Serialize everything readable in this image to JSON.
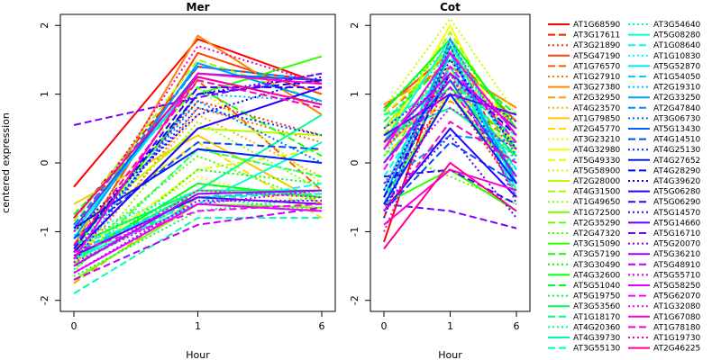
{
  "chart_data": [
    {
      "type": "line",
      "title": "Mer",
      "xlabel": "Hour",
      "ylabel": "centered expression",
      "x": [
        "0",
        "1",
        "6"
      ],
      "ylim": [
        -2,
        2
      ],
      "yticks": [
        -2,
        -1,
        0,
        1,
        2
      ],
      "series": [
        {
          "name": "AT1G68590",
          "values": [
            -0.35,
            1.8,
            1.15
          ]
        },
        {
          "name": "AT3G17611",
          "values": [
            -0.8,
            1.4,
            1.2
          ]
        },
        {
          "name": "AT3G21890",
          "values": [
            -1.1,
            0.9,
            0.4
          ]
        },
        {
          "name": "AT5G47190",
          "values": [
            -1.3,
            1.6,
            1.0
          ]
        },
        {
          "name": "AT1G76570",
          "values": [
            -0.9,
            1.2,
            -0.4
          ]
        },
        {
          "name": "AT1G27910",
          "values": [
            -1.5,
            0.8,
            0.3
          ]
        },
        {
          "name": "AT3G27380",
          "values": [
            -1.2,
            1.85,
            0.7
          ]
        },
        {
          "name": "AT2G32950",
          "values": [
            -1.75,
            -0.5,
            -0.6
          ]
        },
        {
          "name": "AT4G23570",
          "values": [
            -1.4,
            0.7,
            -0.2
          ]
        },
        {
          "name": "AT1G79850",
          "values": [
            -0.6,
            0.4,
            -0.6
          ]
        },
        {
          "name": "AT2G45770",
          "values": [
            -1.0,
            0.3,
            -0.8
          ]
        },
        {
          "name": "AT3G23210",
          "values": [
            -1.3,
            -0.2,
            -0.7
          ]
        },
        {
          "name": "AT4G32980",
          "values": [
            -1.2,
            -0.4,
            -0.5
          ]
        },
        {
          "name": "AT5G49330",
          "values": [
            -1.45,
            -0.1,
            0.2
          ]
        },
        {
          "name": "AT5G58900",
          "values": [
            -1.1,
            1.1,
            -0.3
          ]
        },
        {
          "name": "AT2G28000",
          "values": [
            -1.0,
            0.5,
            0.4
          ]
        },
        {
          "name": "AT4G31500",
          "values": [
            -0.85,
            1.5,
            0.9
          ]
        },
        {
          "name": "AT1G49650",
          "values": [
            -1.6,
            0.6,
            -0.4
          ]
        },
        {
          "name": "AT1G72500",
          "values": [
            -1.7,
            -0.6,
            -0.65
          ]
        },
        {
          "name": "AT2G35290",
          "values": [
            -1.5,
            0.2,
            -0.2
          ]
        },
        {
          "name": "AT2G47320",
          "values": [
            -1.35,
            0.1,
            -0.6
          ]
        },
        {
          "name": "AT3G15090",
          "values": [
            -1.25,
            1.0,
            1.55
          ]
        },
        {
          "name": "AT3G57190",
          "values": [
            -0.75,
            1.1,
            0.1
          ]
        },
        {
          "name": "AT3G30490",
          "values": [
            -1.55,
            -0.1,
            -0.3
          ]
        },
        {
          "name": "AT4G32600",
          "values": [
            -1.4,
            -0.3,
            -0.5
          ]
        },
        {
          "name": "AT5G51040",
          "values": [
            -1.3,
            -0.45,
            -0.4
          ]
        },
        {
          "name": "AT5G19750",
          "values": [
            -1.65,
            -0.7,
            -0.5
          ]
        },
        {
          "name": "AT3G53560",
          "values": [
            -1.2,
            -0.4,
            -0.4
          ]
        },
        {
          "name": "AT1G18170",
          "values": [
            -1.5,
            -0.5,
            -0.45
          ]
        },
        {
          "name": "AT4G20360",
          "values": [
            -1.1,
            -0.5,
            -0.7
          ]
        },
        {
          "name": "AT4G39730",
          "values": [
            -1.4,
            -0.4,
            0.7
          ]
        },
        {
          "name": "AT3G55130",
          "values": [
            -1.9,
            -0.8,
            -0.8
          ]
        },
        {
          "name": "AT3G54640",
          "values": [
            -1.55,
            0.2,
            -0.2
          ]
        },
        {
          "name": "AT5G08280",
          "values": [
            -1.4,
            -0.6,
            0.3
          ]
        },
        {
          "name": "AT1G08640",
          "values": [
            -1.2,
            -0.6,
            -0.3
          ]
        },
        {
          "name": "AT1G10830",
          "values": [
            -1.05,
            -0.4,
            -0.45
          ]
        },
        {
          "name": "AT5G52870",
          "values": [
            -1.0,
            1.25,
            0.85
          ]
        },
        {
          "name": "AT1G54050",
          "values": [
            -1.3,
            -0.5,
            -0.4
          ]
        },
        {
          "name": "AT2G19310",
          "values": [
            -1.4,
            1.0,
            0.9
          ]
        },
        {
          "name": "AT2G33250",
          "values": [
            -1.1,
            1.45,
            0.9
          ]
        },
        {
          "name": "AT2G47840",
          "values": [
            -0.9,
            1.4,
            1.2
          ]
        },
        {
          "name": "AT3G06730",
          "values": [
            -1.3,
            0.9,
            0.0
          ]
        },
        {
          "name": "AT5G13430",
          "values": [
            -0.95,
            1.3,
            1.2
          ]
        },
        {
          "name": "AT4G14510",
          "values": [
            -1.1,
            0.3,
            0.2
          ]
        },
        {
          "name": "AT4G25130",
          "values": [
            -1.2,
            0.8,
            0.4
          ]
        },
        {
          "name": "AT4G27652",
          "values": [
            -0.95,
            0.2,
            0.0
          ]
        },
        {
          "name": "AT4G28290",
          "values": [
            -1.2,
            1.0,
            1.2
          ]
        },
        {
          "name": "AT4G39620",
          "values": [
            -1.0,
            0.7,
            1.25
          ]
        },
        {
          "name": "AT5G06280",
          "values": [
            -1.3,
            0.5,
            1.1
          ]
        },
        {
          "name": "AT5G06290",
          "values": [
            -1.25,
            1.1,
            1.1
          ]
        },
        {
          "name": "AT5G14570",
          "values": [
            -1.45,
            1.0,
            1.3
          ]
        },
        {
          "name": "AT5G14660",
          "values": [
            -1.35,
            -0.5,
            -0.6
          ]
        },
        {
          "name": "AT5G16710",
          "values": [
            0.55,
            0.95,
            1.3
          ]
        },
        {
          "name": "AT5G20070",
          "values": [
            -1.6,
            -0.55,
            -0.55
          ]
        },
        {
          "name": "AT5G36210",
          "values": [
            -1.5,
            -0.45,
            -0.4
          ]
        },
        {
          "name": "AT5G48910",
          "values": [
            -1.7,
            -0.9,
            -0.65
          ]
        },
        {
          "name": "AT5G55710",
          "values": [
            -1.45,
            -0.6,
            -0.4
          ]
        },
        {
          "name": "AT5G58250",
          "values": [
            -1.6,
            -0.6,
            -0.7
          ]
        },
        {
          "name": "AT5G62070",
          "values": [
            -1.3,
            -0.7,
            -0.6
          ]
        },
        {
          "name": "AT1G32080",
          "values": [
            -1.5,
            -0.4,
            -0.5
          ]
        },
        {
          "name": "AT1G67080",
          "values": [
            -1.4,
            1.3,
            1.15
          ]
        },
        {
          "name": "AT1G78180",
          "values": [
            -1.2,
            1.2,
            0.8
          ]
        },
        {
          "name": "AT1G19730",
          "values": [
            -1.0,
            1.7,
            1.15
          ]
        },
        {
          "name": "AT2G46225",
          "values": [
            -0.8,
            1.25,
            0.85
          ]
        }
      ]
    },
    {
      "type": "line",
      "title": "Cot",
      "xlabel": "Hour",
      "ylabel": "",
      "x": [
        "0",
        "1",
        "6"
      ],
      "ylim": [
        -2,
        2
      ],
      "yticks": [
        -2,
        -1,
        0,
        1,
        2
      ],
      "series": [
        {
          "name": "AT1G68590",
          "values": [
            -1.15,
            1.7,
            -0.5
          ]
        },
        {
          "name": "AT3G17611",
          "values": [
            -0.8,
            1.8,
            -0.3
          ]
        },
        {
          "name": "AT3G21890",
          "values": [
            -0.3,
            1.0,
            -0.4
          ]
        },
        {
          "name": "AT5G47190",
          "values": [
            0.8,
            1.6,
            0.6
          ]
        },
        {
          "name": "AT1G76570",
          "values": [
            0.7,
            1.5,
            0.5
          ]
        },
        {
          "name": "AT1G27910",
          "values": [
            0.4,
            1.2,
            0.4
          ]
        },
        {
          "name": "AT3G27380",
          "values": [
            0.85,
            1.4,
            0.8
          ]
        },
        {
          "name": "AT2G32950",
          "values": [
            0.3,
            0.9,
            0.3
          ]
        },
        {
          "name": "AT4G23570",
          "values": [
            0.5,
            1.3,
            0.6
          ]
        },
        {
          "name": "AT1G79850",
          "values": [
            0.2,
            1.1,
            0.3
          ]
        },
        {
          "name": "AT2G45770",
          "values": [
            0.1,
            1.0,
            0.2
          ]
        },
        {
          "name": "AT3G23210",
          "values": [
            0.6,
            1.5,
            0.5
          ]
        },
        {
          "name": "AT4G32980",
          "values": [
            0.3,
            2.0,
            0.1
          ]
        },
        {
          "name": "AT5G49330",
          "values": [
            0.7,
            1.6,
            0.4
          ]
        },
        {
          "name": "AT5G58900",
          "values": [
            0.8,
            2.1,
            0.7
          ]
        },
        {
          "name": "AT2G28000",
          "values": [
            0.5,
            1.7,
            0.2
          ]
        },
        {
          "name": "AT4G31500",
          "values": [
            0.4,
            1.9,
            0.4
          ]
        },
        {
          "name": "AT1G49650",
          "values": [
            -0.3,
            1.3,
            0.0
          ]
        },
        {
          "name": "AT1G72500",
          "values": [
            -0.5,
            1.0,
            -0.2
          ]
        },
        {
          "name": "AT2G35290",
          "values": [
            0.0,
            1.4,
            -0.3
          ]
        },
        {
          "name": "AT2G47320",
          "values": [
            0.2,
            -0.2,
            -0.6
          ]
        },
        {
          "name": "AT3G15090",
          "values": [
            -0.6,
            -0.1,
            -0.7
          ]
        },
        {
          "name": "AT3G57190",
          "values": [
            0.4,
            1.2,
            0.2
          ]
        },
        {
          "name": "AT3G30490",
          "values": [
            0.1,
            1.6,
            -0.2
          ]
        },
        {
          "name": "AT4G32600",
          "values": [
            0.75,
            1.8,
            0.5
          ]
        },
        {
          "name": "AT5G51040",
          "values": [
            0.6,
            1.5,
            0.7
          ]
        },
        {
          "name": "AT5G19750",
          "values": [
            0.8,
            1.7,
            0.6
          ]
        },
        {
          "name": "AT3G53560",
          "values": [
            0.3,
            1.1,
            0.1
          ]
        },
        {
          "name": "AT1G18170",
          "values": [
            0.5,
            1.3,
            0.3
          ]
        },
        {
          "name": "AT4G20360",
          "values": [
            0.2,
            1.4,
            -0.2
          ]
        },
        {
          "name": "AT4G39730",
          "values": [
            0.4,
            0.8,
            0.1
          ]
        },
        {
          "name": "AT3G55130",
          "values": [
            0.7,
            1.0,
            0.4
          ]
        },
        {
          "name": "AT3G54640",
          "values": [
            0.6,
            1.6,
            0.2
          ]
        },
        {
          "name": "AT5G08280",
          "values": [
            0.3,
            1.8,
            -0.4
          ]
        },
        {
          "name": "AT1G08640",
          "values": [
            -0.2,
            1.3,
            -0.1
          ]
        },
        {
          "name": "AT1G10830",
          "values": [
            0.1,
            1.5,
            -0.3
          ]
        },
        {
          "name": "AT5G52870",
          "values": [
            -0.4,
            1.7,
            -0.5
          ]
        },
        {
          "name": "AT1G54050",
          "values": [
            -0.6,
            1.4,
            -0.1
          ]
        },
        {
          "name": "AT2G19310",
          "values": [
            -0.7,
            1.8,
            0.0
          ]
        },
        {
          "name": "AT2G33250",
          "values": [
            -0.5,
            1.6,
            -0.3
          ]
        },
        {
          "name": "AT2G47840",
          "values": [
            -0.3,
            0.4,
            0.3
          ]
        },
        {
          "name": "AT3G06730",
          "values": [
            -0.8,
            1.8,
            0.1
          ]
        },
        {
          "name": "AT5G13430",
          "values": [
            0.0,
            1.2,
            -0.2
          ]
        },
        {
          "name": "AT4G14510",
          "values": [
            -0.7,
            0.3,
            -0.3
          ]
        },
        {
          "name": "AT4G25130",
          "values": [
            -0.8,
            1.7,
            -0.6
          ]
        },
        {
          "name": "AT4G27652",
          "values": [
            -0.6,
            1.0,
            -0.3
          ]
        },
        {
          "name": "AT4G28290",
          "values": [
            -0.5,
            1.3,
            0.4
          ]
        },
        {
          "name": "AT4G39620",
          "values": [
            -0.4,
            1.5,
            0.2
          ]
        },
        {
          "name": "AT5G06280",
          "values": [
            -0.7,
            0.5,
            -0.5
          ]
        },
        {
          "name": "AT5G06290",
          "values": [
            -0.2,
            -0.1,
            -0.6
          ]
        },
        {
          "name": "AT5G14570",
          "values": [
            -0.6,
            0.4,
            -0.8
          ]
        },
        {
          "name": "AT5G14660",
          "values": [
            0.4,
            1.0,
            0.7
          ]
        },
        {
          "name": "AT5G16710",
          "values": [
            -0.6,
            -0.7,
            -0.95
          ]
        },
        {
          "name": "AT5G20070",
          "values": [
            0.5,
            1.2,
            0.6
          ]
        },
        {
          "name": "AT5G36210",
          "values": [
            0.3,
            1.3,
            0.5
          ]
        },
        {
          "name": "AT5G48910",
          "values": [
            0.0,
            1.1,
            -0.2
          ]
        },
        {
          "name": "AT5G55710",
          "values": [
            -0.3,
            0.8,
            0.2
          ]
        },
        {
          "name": "AT5G58250",
          "values": [
            0.2,
            1.6,
            0.4
          ]
        },
        {
          "name": "AT5G62070",
          "values": [
            -0.1,
            1.4,
            0.3
          ]
        },
        {
          "name": "AT1G32080",
          "values": [
            0.2,
            1.2,
            0.5
          ]
        },
        {
          "name": "AT1G67080",
          "values": [
            -0.9,
            -0.1,
            -0.4
          ]
        },
        {
          "name": "AT1G78180",
          "values": [
            -0.7,
            0.6,
            0.0
          ]
        },
        {
          "name": "AT1G19730",
          "values": [
            -1.0,
            1.3,
            -0.5
          ]
        },
        {
          "name": "AT2G46225",
          "values": [
            -1.25,
            0.0,
            -0.7
          ]
        }
      ]
    }
  ],
  "legend": {
    "placement": "right",
    "dash_cycle": [
      "solid",
      "dashed",
      "dotted"
    ]
  }
}
